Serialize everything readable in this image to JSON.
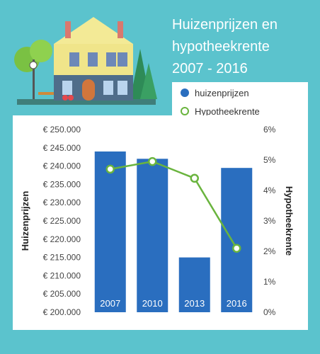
{
  "title_lines": [
    "Huizenprijzen en",
    "hypotheekrente",
    "2007 - 2016"
  ],
  "legend": {
    "bar_label": "huizenprijzen",
    "line_label": "Hypotheekrente"
  },
  "colors": {
    "background": "#5bc3cd",
    "bar": "#2a6ebf",
    "line": "#6ab43e"
  },
  "chart_data": {
    "type": "bar",
    "title": "Huizenprijzen en hypotheekrente 2007 - 2016",
    "categories": [
      "2007",
      "2010",
      "2013",
      "2016"
    ],
    "series": [
      {
        "name": "huizenprijzen",
        "type": "bar",
        "axis": "left",
        "values": [
          244000,
          242000,
          215000,
          239500
        ]
      },
      {
        "name": "Hypotheekrente",
        "type": "line",
        "axis": "right",
        "values": [
          4.7,
          4.95,
          4.4,
          2.1
        ]
      }
    ],
    "ylabel": "Huizenprijzen",
    "ylabel_right": "Hypotheekrente",
    "ylim": [
      200000,
      250000
    ],
    "ylim_right": [
      0,
      6
    ],
    "yticks": [
      "€ 200.000",
      "€ 205.000",
      "€ 210.000",
      "€ 215.000",
      "€ 220.000",
      "€ 225.000",
      "€ 230.000",
      "€ 235.000",
      "€ 240.000",
      "€ 245.000",
      "€ 250.000"
    ],
    "yticks_right": [
      "0%",
      "1%",
      "2%",
      "3%",
      "4%",
      "5%",
      "6%"
    ],
    "grid": false,
    "legend_position": "top-right"
  }
}
